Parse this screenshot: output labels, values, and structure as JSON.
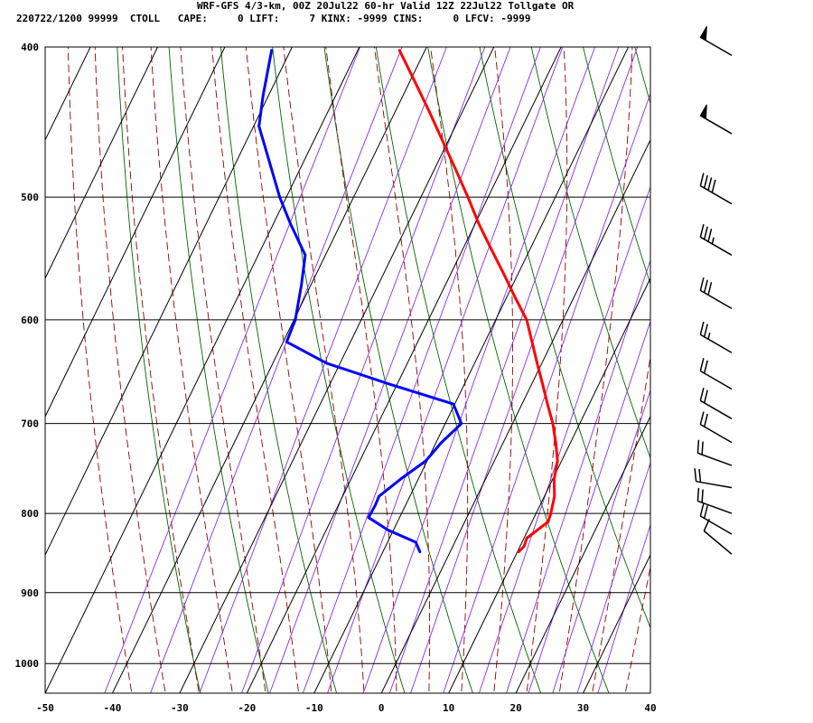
{
  "header": {
    "line1": "WRF-GFS 4/3-km, 00Z 20Jul22 60-hr Valid 12Z 22Jul22 Tollgate OR",
    "line2": "220722/1200 99999  CTOLL   CAPE:     0 LIFT:     7 KINX: -9999 CINS:     0 LFCV: -9999"
  },
  "chart_data": {
    "type": "line",
    "subtype": "skew-t log-p sounding",
    "x_ticks": [
      "-50",
      "-40",
      "-30",
      "-20",
      "-10",
      "0",
      "10",
      "20",
      "30",
      "40"
    ],
    "y_ticks": [
      "400",
      "500",
      "600",
      "700",
      "800",
      "900",
      "1000"
    ],
    "xlim": [
      -50,
      40
    ],
    "ylim": [
      1045,
      400
    ],
    "y_scale": "log",
    "grid": true,
    "series": [
      {
        "color": "#ff0000",
        "points": [
          [
            10.2,
            847
          ],
          [
            10.6,
            840
          ],
          [
            10.4,
            830
          ],
          [
            11.4,
            820
          ],
          [
            12.4,
            810
          ],
          [
            12.2,
            800
          ],
          [
            11.5,
            780
          ],
          [
            10.2,
            760
          ],
          [
            9.4,
            740
          ],
          [
            7.8,
            720
          ],
          [
            6.0,
            700
          ],
          [
            3.8,
            680
          ],
          [
            1.6,
            660
          ],
          [
            -0.7,
            640
          ],
          [
            -3.0,
            620
          ],
          [
            -5.4,
            600
          ],
          [
            -8.8,
            580
          ],
          [
            -12.2,
            560
          ],
          [
            -15.8,
            540
          ],
          [
            -19.5,
            520
          ],
          [
            -23.0,
            500
          ],
          [
            -26.8,
            480
          ],
          [
            -30.8,
            460
          ],
          [
            -35.0,
            440
          ],
          [
            -39.5,
            420
          ],
          [
            -43.8,
            402
          ]
        ]
      },
      {
        "color": "#0000ff",
        "points": [
          [
            -4.5,
            847
          ],
          [
            -5.8,
            835
          ],
          [
            -10.8,
            820
          ],
          [
            -14.6,
            805
          ],
          [
            -14.5,
            790
          ],
          [
            -14.6,
            780
          ],
          [
            -12.6,
            760
          ],
          [
            -10.2,
            740
          ],
          [
            -9.2,
            720
          ],
          [
            -7.6,
            700
          ],
          [
            -10.2,
            680
          ],
          [
            -21.2,
            660
          ],
          [
            -32.0,
            640
          ],
          [
            -39.5,
            620
          ],
          [
            -39.8,
            600
          ],
          [
            -41.4,
            570
          ],
          [
            -43.0,
            545
          ],
          [
            -47.5,
            520
          ],
          [
            -51.0,
            500
          ],
          [
            -55.8,
            470
          ],
          [
            -59.2,
            450
          ],
          [
            -60.8,
            430
          ],
          [
            -62.8,
            402
          ]
        ]
      }
    ],
    "wind_barbs": [
      {
        "pressure": 405,
        "direction": 300,
        "speed": 50
      },
      {
        "pressure": 455,
        "direction": 300,
        "speed": 50
      },
      {
        "pressure": 505,
        "direction": 300,
        "speed": 40
      },
      {
        "pressure": 545,
        "direction": 300,
        "speed": 35
      },
      {
        "pressure": 590,
        "direction": 300,
        "speed": 30
      },
      {
        "pressure": 630,
        "direction": 300,
        "speed": 25
      },
      {
        "pressure": 665,
        "direction": 300,
        "speed": 20
      },
      {
        "pressure": 695,
        "direction": 300,
        "speed": 20
      },
      {
        "pressure": 720,
        "direction": 300,
        "speed": 20
      },
      {
        "pressure": 745,
        "direction": 290,
        "speed": 20
      },
      {
        "pressure": 770,
        "direction": 280,
        "speed": 20
      },
      {
        "pressure": 800,
        "direction": 290,
        "speed": 20
      },
      {
        "pressure": 825,
        "direction": 300,
        "speed": 20
      },
      {
        "pressure": 850,
        "direction": 310,
        "speed": 10
      }
    ],
    "colors": {
      "isotherm": "#000000",
      "dry_adiabat": "#006400",
      "moist_adiabat": "#8b0000",
      "mixing_ratio": "#8a2be2",
      "temperature": "#ff0000",
      "dewpoint": "#0000ff",
      "wind": "#000000"
    }
  }
}
